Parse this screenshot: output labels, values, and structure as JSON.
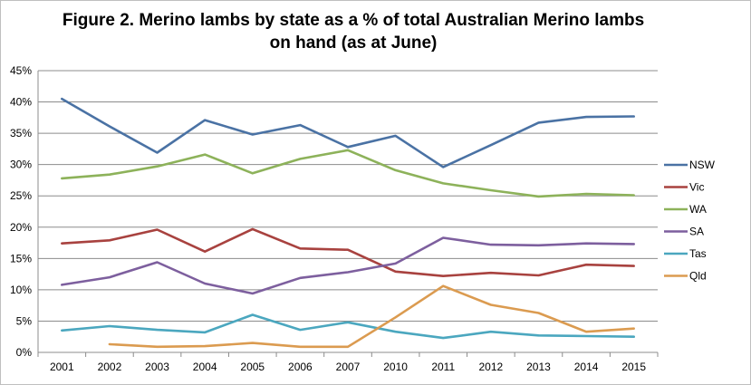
{
  "chart_data": {
    "type": "line",
    "title": "Figure 2. Merino lambs by state as a % of total Australian Merino lambs on hand (as at June)",
    "xlabel": "",
    "ylabel": "",
    "categories": [
      "2001",
      "2002",
      "2003",
      "2004",
      "2005",
      "2006",
      "2007",
      "2010",
      "2011",
      "2012",
      "2013",
      "2014",
      "2015"
    ],
    "ylim": [
      0,
      45
    ],
    "yticks": [
      "0%",
      "5%",
      "10%",
      "15%",
      "20%",
      "25%",
      "30%",
      "35%",
      "40%",
      "45%"
    ],
    "grid": true,
    "legend_position": "right",
    "series": [
      {
        "name": "NSW",
        "color": "#4a72a4",
        "values": [
          40.5,
          36.1,
          31.9,
          37.1,
          34.8,
          36.3,
          32.8,
          34.6,
          29.6,
          33.1,
          36.7,
          37.6,
          37.7
        ]
      },
      {
        "name": "Vic",
        "color": "#a8423f",
        "values": [
          17.4,
          17.9,
          19.6,
          16.1,
          19.7,
          16.6,
          16.4,
          12.9,
          12.2,
          12.7,
          12.3,
          14.0,
          13.8
        ]
      },
      {
        "name": "WA",
        "color": "#8db25a",
        "values": [
          27.8,
          28.4,
          29.7,
          31.6,
          28.6,
          30.9,
          32.3,
          29.1,
          27.0,
          25.9,
          24.9,
          25.3,
          25.1
        ]
      },
      {
        "name": "SA",
        "color": "#7d5f9e",
        "values": [
          10.8,
          12.0,
          14.4,
          11.0,
          9.4,
          11.9,
          12.8,
          14.2,
          18.3,
          17.2,
          17.1,
          17.4,
          17.3
        ]
      },
      {
        "name": "Tas",
        "color": "#4ba7bf",
        "values": [
          3.5,
          4.2,
          3.6,
          3.2,
          6.0,
          3.6,
          4.8,
          3.3,
          2.3,
          3.3,
          2.7,
          2.6,
          2.5
        ]
      },
      {
        "name": "Qld",
        "color": "#db9b50",
        "values": [
          null,
          1.3,
          0.9,
          1.0,
          1.5,
          0.9,
          0.9,
          5.6,
          10.6,
          7.6,
          6.3,
          3.3,
          3.8
        ]
      }
    ]
  }
}
